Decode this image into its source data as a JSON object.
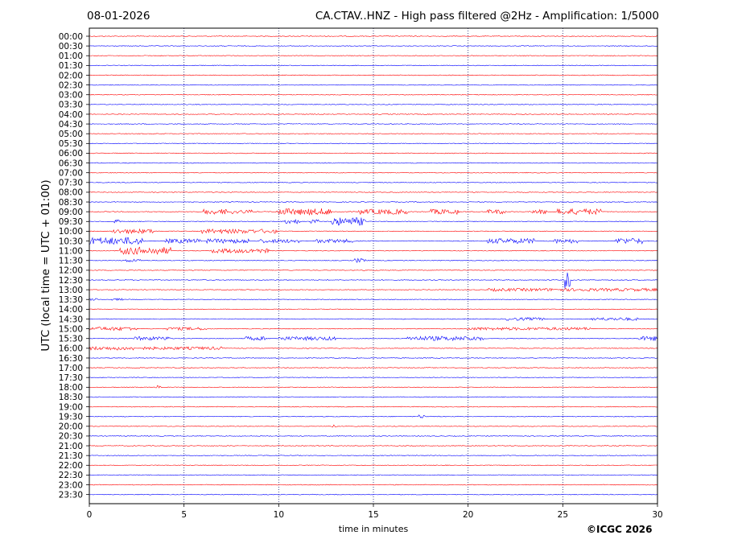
{
  "header": {
    "date": "08-01-2026",
    "title": "CA.CTAV..HNZ - High pass filtered @2Hz - Amplification: 1/5000"
  },
  "footer": {
    "copyright": "©ICGC 2026"
  },
  "chart_data": {
    "type": "line",
    "title": "CA.CTAV..HNZ - High pass filtered @2Hz - Amplification: 1/5000",
    "xlabel": "time in minutes",
    "ylabel": "UTC (local time = UTC + 01:00)",
    "xlim": [
      0,
      30
    ],
    "x_ticks": [
      0,
      5,
      10,
      15,
      20,
      25,
      30
    ],
    "x_gridlines": [
      5,
      10,
      15,
      20,
      25
    ],
    "row_labels": [
      "00:00",
      "00:30",
      "01:00",
      "01:30",
      "02:00",
      "02:30",
      "03:00",
      "03:30",
      "04:00",
      "04:30",
      "05:00",
      "05:30",
      "06:00",
      "06:30",
      "07:00",
      "07:30",
      "08:00",
      "08:30",
      "09:00",
      "09:30",
      "10:00",
      "10:30",
      "11:00",
      "11:30",
      "12:00",
      "12:30",
      "13:00",
      "13:30",
      "14:00",
      "14:30",
      "15:00",
      "15:30",
      "16:00",
      "16:30",
      "17:00",
      "17:30",
      "18:00",
      "18:30",
      "19:00",
      "19:30",
      "20:00",
      "20:30",
      "21:00",
      "21:30",
      "22:00",
      "22:30",
      "23:00",
      "23:30"
    ],
    "trace_colors": [
      "#ff0000",
      "#0000ff"
    ],
    "noise_level": 0.05,
    "bursts": [
      {
        "row": "09:00",
        "start": 6.0,
        "end": 7.6,
        "amp": 0.35
      },
      {
        "row": "09:00",
        "start": 7.8,
        "end": 8.6,
        "amp": 0.25
      },
      {
        "row": "09:00",
        "start": 9.9,
        "end": 12.8,
        "amp": 0.45
      },
      {
        "row": "09:00",
        "start": 14.2,
        "end": 16.8,
        "amp": 0.35
      },
      {
        "row": "09:00",
        "start": 18.0,
        "end": 19.5,
        "amp": 0.35
      },
      {
        "row": "09:00",
        "start": 21.0,
        "end": 22.0,
        "amp": 0.3
      },
      {
        "row": "09:00",
        "start": 23.3,
        "end": 24.2,
        "amp": 0.3
      },
      {
        "row": "09:00",
        "start": 24.7,
        "end": 27.0,
        "amp": 0.4
      },
      {
        "row": "09:30",
        "start": 1.3,
        "end": 1.7,
        "amp": 0.25
      },
      {
        "row": "09:30",
        "start": 10.3,
        "end": 11.1,
        "amp": 0.3
      },
      {
        "row": "09:30",
        "start": 11.7,
        "end": 12.1,
        "amp": 0.3
      },
      {
        "row": "09:30",
        "start": 12.8,
        "end": 14.6,
        "amp": 0.55
      },
      {
        "row": "10:00",
        "start": 1.2,
        "end": 3.4,
        "amp": 0.3
      },
      {
        "row": "10:00",
        "start": 5.9,
        "end": 8.8,
        "amp": 0.3
      },
      {
        "row": "10:00",
        "start": 9.0,
        "end": 9.9,
        "amp": 0.3
      },
      {
        "row": "10:30",
        "start": 0.0,
        "end": 2.8,
        "amp": 0.5
      },
      {
        "row": "10:30",
        "start": 4.0,
        "end": 5.9,
        "amp": 0.3
      },
      {
        "row": "10:30",
        "start": 6.2,
        "end": 8.4,
        "amp": 0.3
      },
      {
        "row": "10:30",
        "start": 9.0,
        "end": 11.1,
        "amp": 0.25
      },
      {
        "row": "10:30",
        "start": 12.0,
        "end": 14.0,
        "amp": 0.25
      },
      {
        "row": "10:30",
        "start": 21.0,
        "end": 23.5,
        "amp": 0.35
      },
      {
        "row": "10:30",
        "start": 24.5,
        "end": 25.8,
        "amp": 0.3
      },
      {
        "row": "10:30",
        "start": 27.8,
        "end": 29.3,
        "amp": 0.4
      },
      {
        "row": "11:00",
        "start": 1.6,
        "end": 4.3,
        "amp": 0.5
      },
      {
        "row": "11:00",
        "start": 6.4,
        "end": 9.5,
        "amp": 0.3
      },
      {
        "row": "11:30",
        "start": 1.9,
        "end": 2.7,
        "amp": 0.2
      },
      {
        "row": "11:30",
        "start": 14.0,
        "end": 14.6,
        "amp": 0.3
      },
      {
        "row": "12:30",
        "start": 25.1,
        "end": 25.4,
        "amp": 1.2
      },
      {
        "row": "13:00",
        "start": 21.0,
        "end": 30.0,
        "amp": 0.2
      },
      {
        "row": "13:30",
        "start": 0.0,
        "end": 0.5,
        "amp": 0.15
      },
      {
        "row": "13:30",
        "start": 1.2,
        "end": 1.8,
        "amp": 0.15
      },
      {
        "row": "14:30",
        "start": 22.0,
        "end": 24.0,
        "amp": 0.2
      },
      {
        "row": "14:30",
        "start": 26.5,
        "end": 29.0,
        "amp": 0.2
      },
      {
        "row": "15:00",
        "start": 0.0,
        "end": 2.5,
        "amp": 0.25
      },
      {
        "row": "15:00",
        "start": 4.1,
        "end": 6.2,
        "amp": 0.2
      },
      {
        "row": "15:00",
        "start": 19.9,
        "end": 26.5,
        "amp": 0.2
      },
      {
        "row": "15:30",
        "start": 2.4,
        "end": 4.3,
        "amp": 0.25
      },
      {
        "row": "15:30",
        "start": 8.1,
        "end": 9.3,
        "amp": 0.25
      },
      {
        "row": "15:30",
        "start": 10.0,
        "end": 13.0,
        "amp": 0.25
      },
      {
        "row": "15:30",
        "start": 16.8,
        "end": 20.8,
        "amp": 0.3
      },
      {
        "row": "15:30",
        "start": 29.0,
        "end": 30.0,
        "amp": 0.3
      },
      {
        "row": "16:00",
        "start": 0.0,
        "end": 2.4,
        "amp": 0.25
      },
      {
        "row": "16:00",
        "start": 2.8,
        "end": 7.0,
        "amp": 0.2
      },
      {
        "row": "18:00",
        "start": 3.5,
        "end": 3.8,
        "amp": 0.25
      },
      {
        "row": "19:30",
        "start": 17.4,
        "end": 17.7,
        "amp": 0.25
      },
      {
        "row": "20:00",
        "start": 12.8,
        "end": 13.1,
        "amp": 0.2
      }
    ]
  }
}
